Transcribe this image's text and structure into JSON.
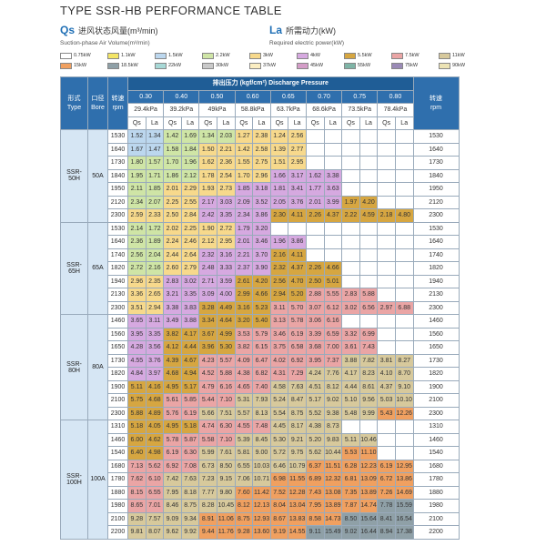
{
  "title": "TYPE SSR-HB PERFORMANCE TABLE",
  "qs": {
    "tag": "Qs",
    "cn": "进风状态风量(m³/min)",
    "en": "Suction-phase Air Volume(m³/min)"
  },
  "la": {
    "tag": "La",
    "cn": "所需动力(kW)",
    "en": "Required electric power(kW)"
  },
  "legend": [
    {
      "label": "0.75kW",
      "color": "#ffffff"
    },
    {
      "label": "1.1kW",
      "color": "#f3e566"
    },
    {
      "label": "1.5kW",
      "color": "#bcd7ee"
    },
    {
      "label": "2.2kW",
      "color": "#cfe5a6"
    },
    {
      "label": "3kW",
      "color": "#f7d98c"
    },
    {
      "label": "4kW",
      "color": "#d6a9e0"
    },
    {
      "label": "5.5kW",
      "color": "#d6a641"
    },
    {
      "label": "7.5kW",
      "color": "#eaa5a5"
    },
    {
      "label": "11kW",
      "color": "#d7c99c"
    },
    {
      "label": "15kW",
      "color": "#f0a060"
    },
    {
      "label": "18.5kW",
      "color": "#8fa0a7"
    },
    {
      "label": "22kW",
      "color": "#a7d8d6"
    },
    {
      "label": "30kW",
      "color": "#c9c9c9"
    },
    {
      "label": "37kW",
      "color": "#fbeec2"
    },
    {
      "label": "45kW",
      "color": "#d49dc8"
    },
    {
      "label": "55kW",
      "color": "#7fb4a6"
    },
    {
      "label": "75kW",
      "color": "#9a8ab6"
    },
    {
      "label": "90kW",
      "color": "#ece3b4"
    }
  ],
  "header": {
    "type_cn": "形式",
    "type_en": "Type",
    "bore_cn": "口径",
    "bore_en": "Bore",
    "rpm_cn": "转速",
    "rpm_en": "rpm",
    "pressure_label": "排出压力  (kgf/cm²)  Discharge Pressure",
    "pressures": [
      "0.30",
      "0.40",
      "0.50",
      "0.60",
      "0.65",
      "0.70",
      "0.75",
      "0.80"
    ],
    "kpa": [
      "29.4kPa",
      "39.2kPa",
      "49kPa",
      "58.8kPa",
      "63.7kPa",
      "68.6kPa",
      "73.5kPa",
      "78.4kPa"
    ],
    "qs": "Qs",
    "la": "La"
  },
  "groups": [
    {
      "type": "SSR-50H",
      "bore": "50A",
      "rows": [
        {
          "rpm": "1530",
          "v": [
            "1.52",
            "1.34",
            "1.42",
            "1.69",
            "1.34",
            "2.03",
            "1.27",
            "2.38",
            "1.24",
            "2.56",
            "",
            "",
            "",
            "",
            "",
            ""
          ]
        },
        {
          "rpm": "1640",
          "v": [
            "1.67",
            "1.47",
            "1.58",
            "1.84",
            "1.50",
            "2.21",
            "1.42",
            "2.58",
            "1.39",
            "2.77",
            "",
            "",
            "",
            "",
            "",
            ""
          ]
        },
        {
          "rpm": "1730",
          "v": [
            "1.80",
            "1.57",
            "1.70",
            "1.96",
            "1.62",
            "2.36",
            "1.55",
            "2.75",
            "1.51",
            "2.95",
            "",
            "",
            "",
            "",
            "",
            ""
          ]
        },
        {
          "rpm": "1840",
          "v": [
            "1.95",
            "1.71",
            "1.86",
            "2.12",
            "1.78",
            "2.54",
            "1.70",
            "2.96",
            "1.66",
            "3.17",
            "1.62",
            "3.38",
            "",
            "",
            "",
            ""
          ]
        },
        {
          "rpm": "1950",
          "v": [
            "2.11",
            "1.85",
            "2.01",
            "2.29",
            "1.93",
            "2.73",
            "1.85",
            "3.18",
            "1.81",
            "3.41",
            "1.77",
            "3.63",
            "",
            "",
            "",
            ""
          ]
        },
        {
          "rpm": "2120",
          "v": [
            "2.34",
            "2.07",
            "2.25",
            "2.55",
            "2.17",
            "3.03",
            "2.09",
            "3.52",
            "2.05",
            "3.76",
            "2.01",
            "3.99",
            "1.97",
            "4.20",
            "",
            ""
          ]
        },
        {
          "rpm": "2300",
          "v": [
            "2.59",
            "2.33",
            "2.50",
            "2.84",
            "2.42",
            "3.35",
            "2.34",
            "3.86",
            "2.30",
            "4.11",
            "2.26",
            "4.37",
            "2.22",
            "4.59",
            "2.18",
            "4.80"
          ]
        }
      ]
    },
    {
      "type": "SSR-65H",
      "bore": "65A",
      "rows": [
        {
          "rpm": "1530",
          "v": [
            "2.14",
            "1.72",
            "2.02",
            "2.25",
            "1.90",
            "2.72",
            "1.79",
            "3.20",
            "",
            "",
            "",
            "",
            "",
            "",
            "",
            ""
          ]
        },
        {
          "rpm": "1640",
          "v": [
            "2.36",
            "1.89",
            "2.24",
            "2.46",
            "2.12",
            "2.95",
            "2.01",
            "3.46",
            "1.96",
            "3.86",
            "",
            "",
            "",
            "",
            "",
            ""
          ]
        },
        {
          "rpm": "1740",
          "v": [
            "2.56",
            "2.04",
            "2.44",
            "2.64",
            "2.32",
            "3.16",
            "2.21",
            "3.70",
            "2.16",
            "4.11",
            "",
            "",
            "",
            "",
            "",
            ""
          ]
        },
        {
          "rpm": "1820",
          "v": [
            "2.72",
            "2.16",
            "2.60",
            "2.79",
            "2.48",
            "3.33",
            "2.37",
            "3.90",
            "2.32",
            "4.37",
            "2.26",
            "4.66",
            "",
            "",
            "",
            ""
          ]
        },
        {
          "rpm": "1940",
          "v": [
            "2.96",
            "2.35",
            "2.83",
            "3.02",
            "2.71",
            "3.59",
            "2.61",
            "4.20",
            "2.56",
            "4.70",
            "2.50",
            "5.01",
            "",
            "",
            "",
            ""
          ]
        },
        {
          "rpm": "2130",
          "v": [
            "3.36",
            "2.65",
            "3.21",
            "3.35",
            "3.09",
            "4.00",
            "2.99",
            "4.66",
            "2.94",
            "5.20",
            "2.88",
            "5.55",
            "2.83",
            "5.88",
            "",
            ""
          ]
        },
        {
          "rpm": "2300",
          "v": [
            "3.51",
            "2.94",
            "3.38",
            "3.83",
            "3.28",
            "4.49",
            "3.16",
            "5.23",
            "3.11",
            "5.70",
            "3.07",
            "6.12",
            "3.02",
            "6.56",
            "2.97",
            "6.88"
          ]
        }
      ]
    },
    {
      "type": "SSR-80H",
      "bore": "80A",
      "rows": [
        {
          "rpm": "1460",
          "v": [
            "3.65",
            "3.11",
            "3.49",
            "3.88",
            "3.34",
            "4.64",
            "3.20",
            "5.40",
            "3.13",
            "5.78",
            "3.06",
            "6.16",
            "",
            "",
            "",
            ""
          ]
        },
        {
          "rpm": "1560",
          "v": [
            "3.95",
            "3.35",
            "3.82",
            "4.17",
            "3.67",
            "4.99",
            "3.53",
            "5.79",
            "3.46",
            "6.19",
            "3.39",
            "6.59",
            "3.32",
            "6.99",
            "",
            ""
          ]
        },
        {
          "rpm": "1650",
          "v": [
            "4.28",
            "3.56",
            "4.12",
            "4.44",
            "3.96",
            "5.30",
            "3.82",
            "6.15",
            "3.75",
            "6.58",
            "3.68",
            "7.00",
            "3.61",
            "7.43",
            "",
            ""
          ]
        },
        {
          "rpm": "1730",
          "v": [
            "4.55",
            "3.76",
            "4.39",
            "4.67",
            "4.23",
            "5.57",
            "4.09",
            "6.47",
            "4.02",
            "6.92",
            "3.95",
            "7.37",
            "3.88",
            "7.82",
            "3.81",
            "8.27"
          ]
        },
        {
          "rpm": "1820",
          "v": [
            "4.84",
            "3.97",
            "4.68",
            "4.94",
            "4.52",
            "5.88",
            "4.38",
            "6.82",
            "4.31",
            "7.29",
            "4.24",
            "7.76",
            "4.17",
            "8.23",
            "4.10",
            "8.70"
          ]
        },
        {
          "rpm": "1900",
          "v": [
            "5.11",
            "4.16",
            "4.95",
            "5.17",
            "4.79",
            "6.16",
            "4.65",
            "7.40",
            "4.58",
            "7.63",
            "4.51",
            "8.12",
            "4.44",
            "8.61",
            "4.37",
            "9.10"
          ]
        },
        {
          "rpm": "2100",
          "v": [
            "5.75",
            "4.68",
            "5.61",
            "5.85",
            "5.44",
            "7.10",
            "5.31",
            "7.93",
            "5.24",
            "8.47",
            "5.17",
            "9.02",
            "5.10",
            "9.56",
            "5.03",
            "10.10"
          ]
        },
        {
          "rpm": "2300",
          "v": [
            "5.88",
            "4.89",
            "5.76",
            "6.19",
            "5.66",
            "7.51",
            "5.57",
            "8.13",
            "5.54",
            "8.75",
            "5.52",
            "9.38",
            "5.48",
            "9.99",
            "5.43",
            "12.26"
          ]
        }
      ]
    },
    {
      "type": "SSR-100H",
      "bore": "100A",
      "rows": [
        {
          "rpm": "1310",
          "v": [
            "5.18",
            "4.05",
            "4.95",
            "5.18",
            "4.74",
            "6.30",
            "4.55",
            "7.48",
            "4.45",
            "8.17",
            "4.38",
            "8.73",
            "",
            "",
            "",
            ""
          ]
        },
        {
          "rpm": "1460",
          "v": [
            "6.00",
            "4.62",
            "5.78",
            "5.87",
            "5.58",
            "7.10",
            "5.39",
            "8.45",
            "5.30",
            "9.21",
            "5.20",
            "9.83",
            "5.11",
            "10.46",
            "",
            ""
          ]
        },
        {
          "rpm": "1540",
          "v": [
            "6.40",
            "4.98",
            "6.19",
            "6.30",
            "5.99",
            "7.61",
            "5.81",
            "9.00",
            "5.72",
            "9.75",
            "5.62",
            "10.44",
            "5.53",
            "11.10",
            "",
            ""
          ]
        },
        {
          "rpm": "1680",
          "v": [
            "7.13",
            "5.62",
            "6.92",
            "7.08",
            "6.73",
            "8.50",
            "6.55",
            "10.03",
            "6.46",
            "10.79",
            "6.37",
            "11.51",
            "6.28",
            "12.23",
            "6.19",
            "12.95"
          ]
        },
        {
          "rpm": "1780",
          "v": [
            "7.62",
            "6.10",
            "7.42",
            "7.63",
            "7.23",
            "9.15",
            "7.06",
            "10.71",
            "6.98",
            "11.55",
            "6.89",
            "12.32",
            "6.81",
            "13.09",
            "6.72",
            "13.86"
          ]
        },
        {
          "rpm": "1880",
          "v": [
            "8.15",
            "6.55",
            "7.95",
            "8.18",
            "7.77",
            "9.80",
            "7.60",
            "11.42",
            "7.52",
            "12.28",
            "7.43",
            "13.08",
            "7.35",
            "13.89",
            "7.26",
            "14.69"
          ]
        },
        {
          "rpm": "1980",
          "v": [
            "8.65",
            "7.01",
            "8.46",
            "8.75",
            "8.28",
            "10.45",
            "8.12",
            "12.13",
            "8.04",
            "13.04",
            "7.95",
            "13.89",
            "7.87",
            "14.74",
            "7.78",
            "15.59"
          ]
        },
        {
          "rpm": "2100",
          "v": [
            "9.28",
            "7.57",
            "9.09",
            "9.34",
            "8.91",
            "11.06",
            "8.75",
            "12.93",
            "8.67",
            "13.83",
            "8.58",
            "14.73",
            "8.50",
            "15.64",
            "8.41",
            "16.54"
          ]
        },
        {
          "rpm": "2200",
          "v": [
            "9.81",
            "8.07",
            "9.62",
            "9.92",
            "9.44",
            "11.76",
            "9.28",
            "13.60",
            "9.19",
            "14.55",
            "9.11",
            "15.49",
            "9.02",
            "16.44",
            "8.94",
            "17.38"
          ]
        }
      ]
    }
  ]
}
